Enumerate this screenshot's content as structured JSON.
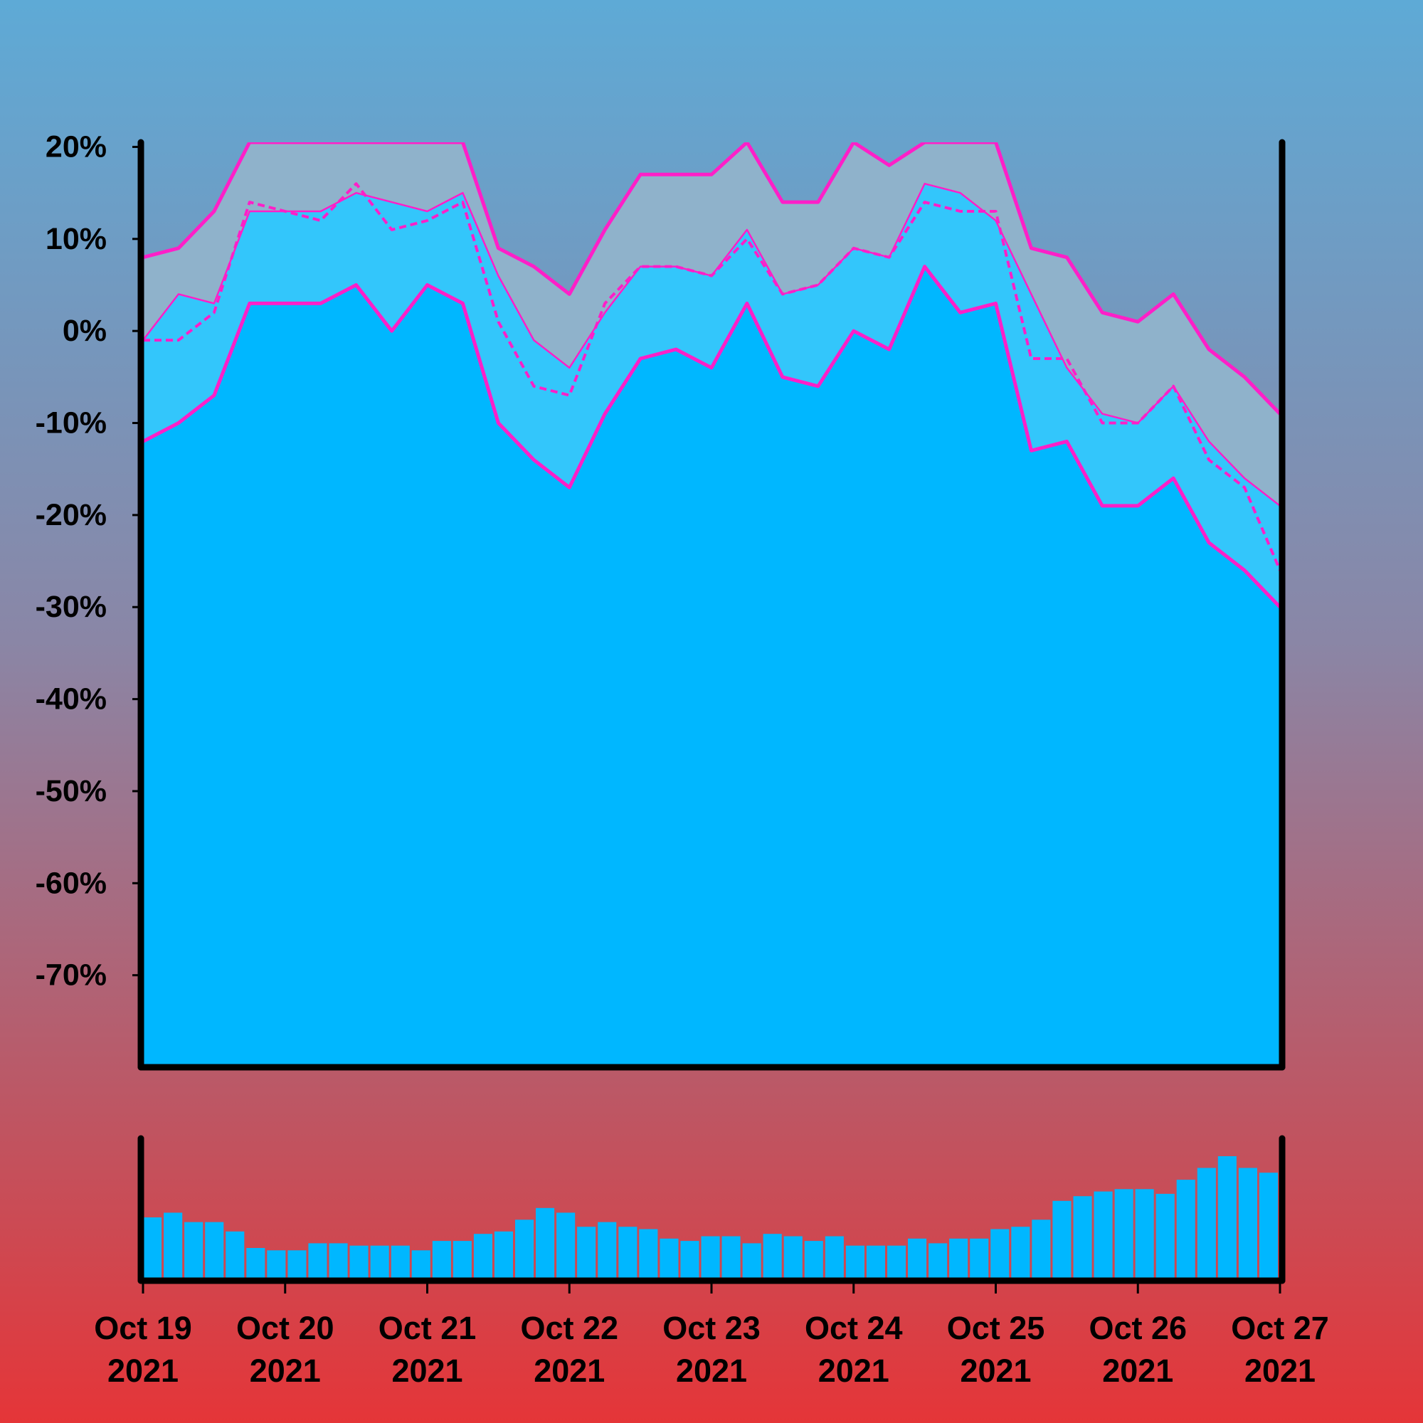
{
  "colors": {
    "background_top": "#5eaad6",
    "background_bottom": "#e53538",
    "area_fill": "#00b7ff",
    "band_fill": "#33c6fb",
    "envelope_fill": "#8fb2cb",
    "line": "#ff1fc8",
    "axis": "#000000"
  },
  "chart_data": {
    "type": "area",
    "title": "",
    "xlabel": "",
    "ylabel": "",
    "ylim": [
      -80,
      20.5
    ],
    "y_ticks": [
      20,
      10,
      0,
      -10,
      -20,
      -30,
      -40,
      -50,
      -60,
      -70
    ],
    "y_tick_labels": [
      "20%",
      "10%",
      "0%",
      "-10%",
      "-20%",
      "-30%",
      "-40%",
      "-50%",
      "-60%",
      "-70%"
    ],
    "x_ticks": [
      {
        "date": "2021-10-19",
        "label_line1": "Oct 19",
        "label_line2": "2021"
      },
      {
        "date": "2021-10-20",
        "label_line1": "Oct 20",
        "label_line2": "2021"
      },
      {
        "date": "2021-10-21",
        "label_line1": "Oct 21",
        "label_line2": "2021"
      },
      {
        "date": "2021-10-22",
        "label_line1": "Oct 22",
        "label_line2": "2021"
      },
      {
        "date": "2021-10-23",
        "label_line1": "Oct 23",
        "label_line2": "2021"
      },
      {
        "date": "2021-10-24",
        "label_line1": "Oct 24",
        "label_line2": "2021"
      },
      {
        "date": "2021-10-25",
        "label_line1": "Oct 25",
        "label_line2": "2021"
      },
      {
        "date": "2021-10-26",
        "label_line1": "Oct 26",
        "label_line2": "2021"
      },
      {
        "date": "2021-10-27",
        "label_line1": "Oct 27",
        "label_line2": "2021"
      }
    ],
    "x": [
      "2021-10-19 00:00",
      "2021-10-19 06:00",
      "2021-10-19 12:00",
      "2021-10-19 18:00",
      "2021-10-20 00:00",
      "2021-10-20 06:00",
      "2021-10-20 12:00",
      "2021-10-20 18:00",
      "2021-10-21 00:00",
      "2021-10-21 06:00",
      "2021-10-21 12:00",
      "2021-10-21 18:00",
      "2021-10-22 00:00",
      "2021-10-22 06:00",
      "2021-10-22 12:00",
      "2021-10-22 18:00",
      "2021-10-23 00:00",
      "2021-10-23 06:00",
      "2021-10-23 12:00",
      "2021-10-23 18:00",
      "2021-10-24 00:00",
      "2021-10-24 06:00",
      "2021-10-24 12:00",
      "2021-10-24 18:00",
      "2021-10-25 00:00",
      "2021-10-25 06:00",
      "2021-10-25 12:00",
      "2021-10-25 18:00",
      "2021-10-26 00:00",
      "2021-10-26 06:00",
      "2021-10-26 12:00",
      "2021-10-26 18:00",
      "2021-10-27 00:00"
    ],
    "series": [
      {
        "values": [
          8,
          9,
          13,
          20.5,
          20.5,
          20.5,
          20.5,
          20.5,
          20.5,
          20.5,
          9,
          7,
          4,
          11,
          17,
          17,
          17,
          20.5,
          14,
          14,
          20.5,
          18,
          20.5,
          20.5,
          20.5,
          9,
          8,
          2,
          1,
          4,
          -2,
          -5,
          -9
        ]
      },
      {
        "values": [
          -1,
          4,
          3,
          13,
          13,
          13,
          15,
          14,
          13,
          15,
          6,
          -1,
          -4,
          2,
          7,
          7,
          6,
          11,
          4,
          5,
          9,
          8,
          16,
          15,
          12,
          4,
          -4,
          -9,
          -10,
          -6,
          -12,
          -16,
          -19
        ]
      },
      {
        "values": [
          -1,
          -1,
          2,
          14,
          13,
          12,
          16,
          11,
          12,
          14,
          1,
          -6,
          -7,
          3,
          7,
          7,
          6,
          10,
          4,
          5,
          9,
          8,
          14,
          13,
          13,
          -3,
          -3,
          -10,
          -10,
          -6,
          -14,
          -17,
          -26
        ]
      },
      {
        "values": [
          -12,
          -10,
          -7,
          3,
          3,
          3,
          5,
          0,
          5,
          3,
          -10,
          -14,
          -17,
          -9,
          -3,
          -2,
          -4,
          3,
          -5,
          -6,
          0,
          -2,
          7,
          2,
          3,
          -13,
          -12,
          -19,
          -19,
          -16,
          -23,
          -26,
          -30
        ]
      }
    ],
    "volume": {
      "values": [
        26,
        28,
        24,
        24,
        20,
        13,
        12,
        12,
        15,
        15,
        14,
        14,
        14,
        12,
        16,
        16,
        19,
        20,
        25,
        30,
        28,
        22,
        24,
        22,
        21,
        17,
        16,
        18,
        18,
        15,
        19,
        18,
        16,
        18,
        14,
        14,
        14,
        17,
        15,
        17,
        17,
        21,
        22,
        25,
        33,
        35,
        37,
        38,
        38,
        36,
        42,
        47,
        52,
        47,
        45
      ]
    }
  }
}
